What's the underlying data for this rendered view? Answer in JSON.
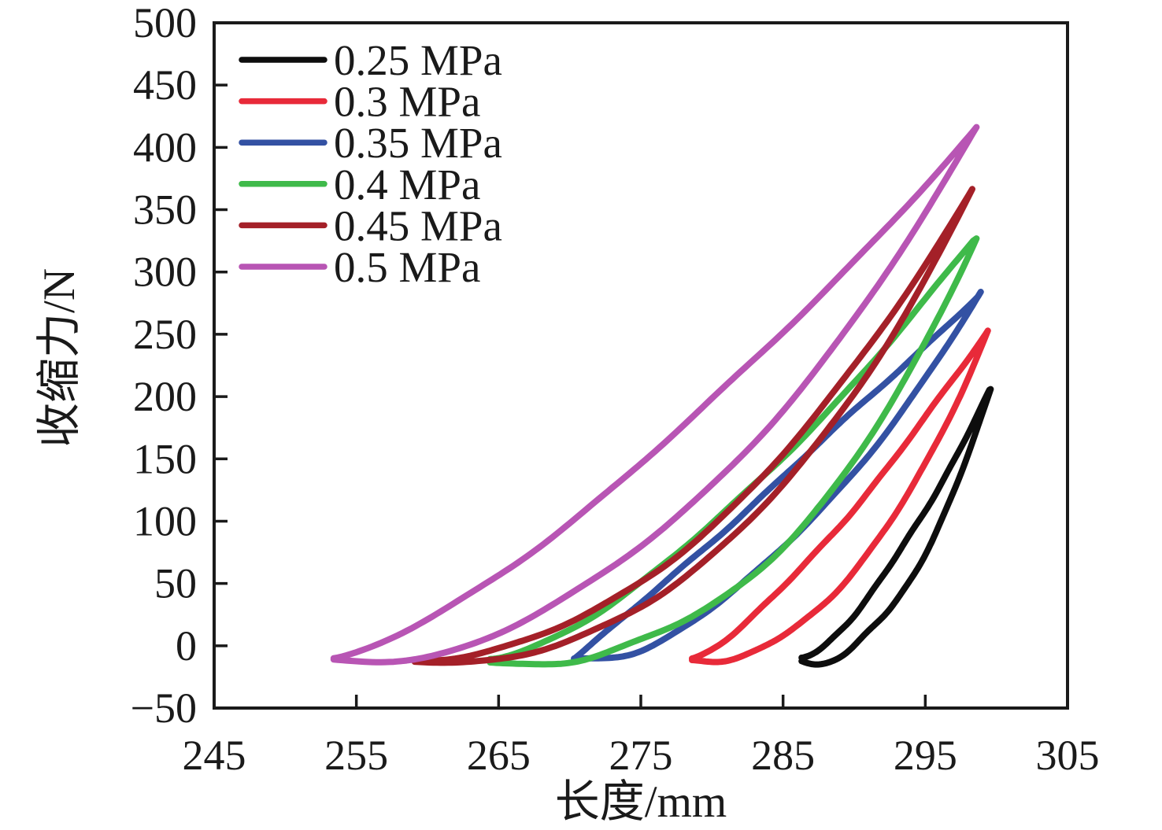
{
  "styles": {
    "background": "#ffffff",
    "axis_color": "#1a1a1a",
    "frame_line_width": 4,
    "curve_line_width": 8
  },
  "chart_data": {
    "type": "line",
    "subtype": "isobaric_hysteresis_loops",
    "title": "",
    "xlabel": "长度/mm",
    "ylabel": "收缩力/N",
    "xlim": [
      245,
      305
    ],
    "ylim": [
      -50,
      500
    ],
    "xticks": [
      245,
      255,
      265,
      275,
      285,
      295,
      305
    ],
    "yticks": [
      -50,
      0,
      50,
      100,
      150,
      200,
      250,
      300,
      350,
      400,
      450,
      500
    ],
    "grid": false,
    "legend_position": "top-left-inside",
    "series": [
      {
        "name": "0.25 MPa",
        "pressure_mpa": 0.25,
        "color": "#0d0d0d",
        "length_min_mm": 286.3,
        "length_max_mm": 299.6,
        "force_at_min_length_n": -11,
        "force_peak_n": 206,
        "shape_exp_upper": 1.4,
        "shape_exp_lower": 2.2
      },
      {
        "name": "0.3 MPa",
        "pressure_mpa": 0.3,
        "color": "#e82a39",
        "length_min_mm": 278.6,
        "length_max_mm": 299.4,
        "force_at_min_length_n": -10,
        "force_peak_n": 253,
        "shape_exp_upper": 1.3,
        "shape_exp_lower": 2.2
      },
      {
        "name": "0.35 MPa",
        "pressure_mpa": 0.35,
        "color": "#3351a3",
        "length_min_mm": 270.3,
        "length_max_mm": 298.9,
        "force_at_min_length_n": -10,
        "force_peak_n": 283,
        "shape_exp_upper": 1.05,
        "shape_exp_lower": 1.8
      },
      {
        "name": "0.4 MPa",
        "pressure_mpa": 0.4,
        "color": "#3fba4a",
        "length_min_mm": 264.4,
        "length_max_mm": 298.6,
        "force_at_min_length_n": -11,
        "force_peak_n": 328,
        "shape_exp_upper": 1.45,
        "shape_exp_lower": 2.6
      },
      {
        "name": "0.45 MPa",
        "pressure_mpa": 0.45,
        "color": "#a42028",
        "length_min_mm": 259.1,
        "length_max_mm": 298.3,
        "force_at_min_length_n": -11,
        "force_peak_n": 367,
        "shape_exp_upper": 2.0,
        "shape_exp_lower": 2.4
      },
      {
        "name": "0.5 MPa",
        "pressure_mpa": 0.5,
        "color": "#b855b4",
        "length_min_mm": 253.4,
        "length_max_mm": 298.6,
        "force_at_min_length_n": -11,
        "force_peak_n": 415,
        "shape_exp_upper": 1.35,
        "shape_exp_lower": 2.1
      }
    ]
  }
}
